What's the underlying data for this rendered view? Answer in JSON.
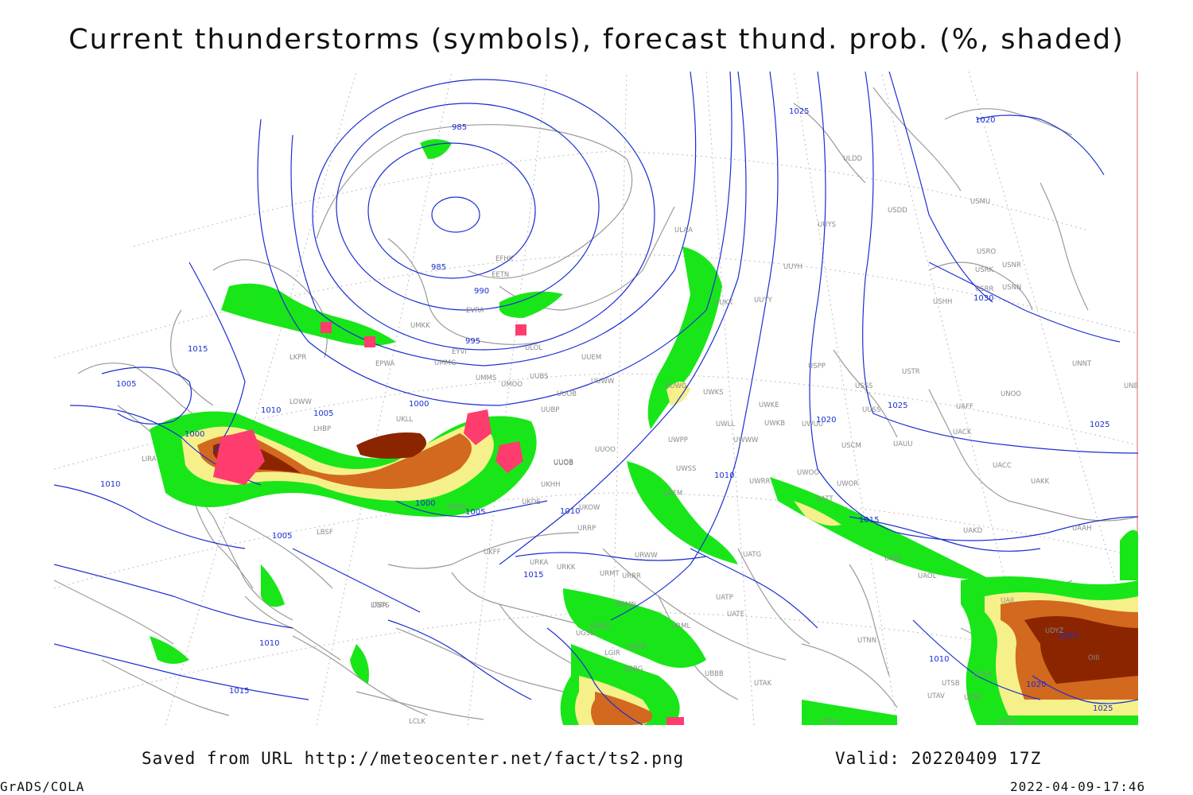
{
  "title": "Current thunderstorms (symbols), forecast thund. prob. (%, shaded)",
  "footer": {
    "saved_from": "Saved from URL http://meteocenter.net/fact/ts2.png",
    "valid": "Valid: 20220409 17Z",
    "software": "GrADS/COLA",
    "timestamp": "2022-04-09-17:46"
  },
  "colors": {
    "isobar": "#1a2fd0",
    "coastline": "#9a9a9a",
    "grid": "#b8b8b8",
    "station": "#8a8a8a",
    "prob_low": "#19e619",
    "prob_mid": "#f5f08a",
    "prob_high": "#d2691e",
    "prob_max": "#8b2500",
    "storm_symbol": "#ff3c6e"
  },
  "isobar_labels": [
    "985",
    "985",
    "990",
    "995",
    "1000",
    "1000",
    "1005",
    "1005",
    "1005",
    "1010",
    "1010",
    "1010",
    "1010",
    "1010",
    "1015",
    "1015",
    "1015",
    "1015",
    "1020",
    "1020",
    "1025",
    "1025",
    "1025",
    "1030",
    "1000",
    "1005",
    "1010",
    "1015",
    "1020",
    "1025"
  ],
  "stations": [
    "ULDD",
    "USDD",
    "USMU",
    "UUYS",
    "ULAA",
    "USRO",
    "USRK",
    "USNR",
    "USRR",
    "USNN",
    "USHH",
    "UUYH",
    "UUKK",
    "UUYY",
    "EFHK",
    "EETN",
    "EVRA",
    "UMKK",
    "ULOL",
    "UUEM",
    "UUWW",
    "EYVI",
    "UMMG",
    "UMMS",
    "UMOO",
    "UUBS",
    "LKPR",
    "EPWA",
    "UUOB",
    "USPP",
    "USTR",
    "USSS",
    "UNOO",
    "UUSS",
    "UAFF",
    "UUWG",
    "UWKS",
    "UWKE",
    "UWKB",
    "UWUU",
    "USCM",
    "UAUU",
    "UACK",
    "UNNT",
    "UNBB",
    "LOWW",
    "UKLL",
    "UUBP",
    "LHBP",
    "UWLL",
    "UWPP",
    "UWWW",
    "UUOO",
    "UUOB",
    "LIRA",
    "UWSS",
    "UWRR",
    "UWOO",
    "UWOR",
    "UATT",
    "UACC",
    "UAKK",
    "UKHH",
    "UKDE",
    "UKOO",
    "UKOW",
    "URRP",
    "UUOB",
    "LBSF",
    "UKFF",
    "URKA",
    "URKK",
    "UAKD",
    "URMT",
    "URWW",
    "UATG",
    "UATA",
    "UAOL",
    "UAAH",
    "LGTS",
    "UGSB",
    "UGKO",
    "URMN",
    "URML",
    "UATP",
    "UATE",
    "LGIR",
    "UBBB",
    "UTAK",
    "UTNN",
    "UTSA",
    "UTSB",
    "UTAV",
    "UTSK",
    "UTAA",
    "UTST",
    "LCLK",
    "LTBA",
    "UBBG",
    "URRR",
    "UAFM",
    "UAII",
    "UGTB",
    "UDYZ",
    "OIII"
  ]
}
